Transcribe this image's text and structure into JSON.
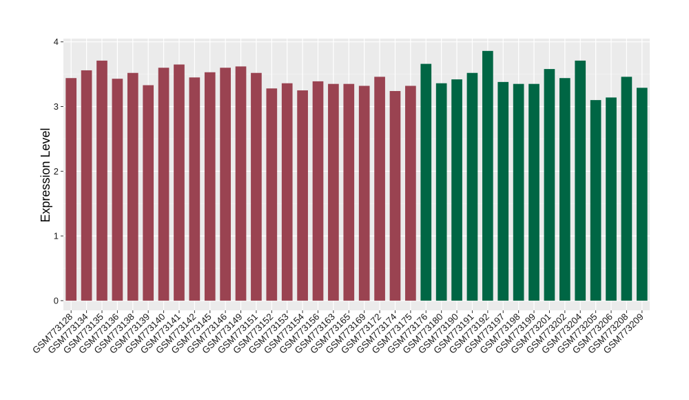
{
  "chart_data": {
    "type": "bar",
    "title": "",
    "xlabel": "",
    "ylabel": "Expression Level",
    "ylim": [
      -0.15,
      4.05
    ],
    "yticks": [
      0,
      1,
      2,
      3,
      4
    ],
    "grid": true,
    "legend": "none",
    "background": "#ebebeb",
    "categories": [
      "GSM773128",
      "GSM773134",
      "GSM773135",
      "GSM773136",
      "GSM773138",
      "GSM773139",
      "GSM773140",
      "GSM773141",
      "GSM773142",
      "GSM773145",
      "GSM773146",
      "GSM773149",
      "GSM773151",
      "GSM773152",
      "GSM773153",
      "GSM773154",
      "GSM773156",
      "GSM773163",
      "GSM773165",
      "GSM773169",
      "GSM773172",
      "GSM773174",
      "GSM773175",
      "GSM773176",
      "GSM773180",
      "GSM773190",
      "GSM773191",
      "GSM773192",
      "GSM773197",
      "GSM773198",
      "GSM773199",
      "GSM773201",
      "GSM773202",
      "GSM773204",
      "GSM773205",
      "GSM773206",
      "GSM773208",
      "GSM773209"
    ],
    "values": [
      3.44,
      3.56,
      3.71,
      3.43,
      3.52,
      3.33,
      3.6,
      3.65,
      3.45,
      3.53,
      3.6,
      3.62,
      3.52,
      3.28,
      3.36,
      3.25,
      3.39,
      3.35,
      3.35,
      3.32,
      3.46,
      3.24,
      3.32,
      3.66,
      3.36,
      3.42,
      3.52,
      3.86,
      3.38,
      3.35,
      3.35,
      3.58,
      3.44,
      3.71,
      3.1,
      3.14,
      3.46,
      3.29
    ],
    "groups": [
      0,
      0,
      0,
      0,
      0,
      0,
      0,
      0,
      0,
      0,
      0,
      0,
      0,
      0,
      0,
      0,
      0,
      0,
      0,
      0,
      0,
      0,
      0,
      1,
      1,
      1,
      1,
      1,
      1,
      1,
      1,
      1,
      1,
      1,
      1,
      1,
      1,
      1
    ],
    "colors": [
      "#9a4351",
      "#006644"
    ]
  }
}
